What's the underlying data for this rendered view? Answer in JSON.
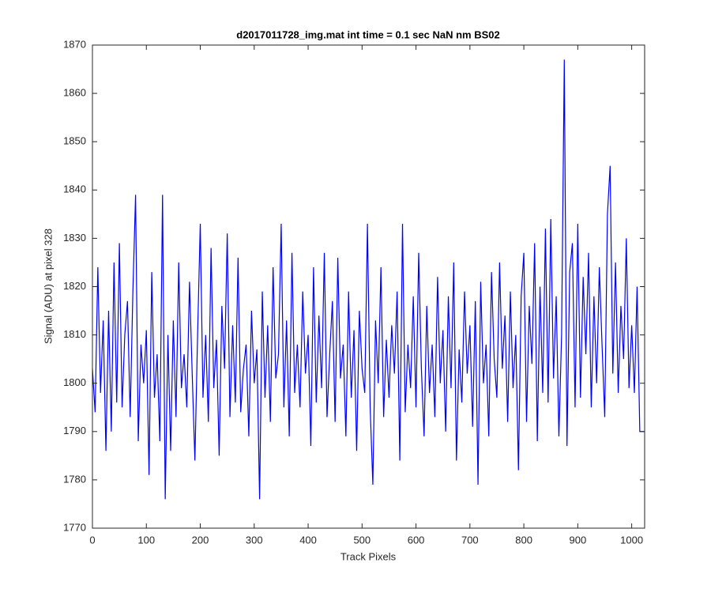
{
  "chart_data": {
    "type": "line",
    "title": "d2017011728_img.mat int time = 0.1 sec  NaN nm BS02",
    "x_label": "Track Pixels",
    "y_label": "Signal (ADU) at pixel 328",
    "xlim": [
      0,
      1024
    ],
    "ylim": [
      1770,
      1870
    ],
    "xticks": [
      0,
      100,
      200,
      300,
      400,
      500,
      600,
      700,
      800,
      900,
      1000
    ],
    "yticks": [
      1770,
      1780,
      1790,
      1800,
      1810,
      1820,
      1830,
      1840,
      1850,
      1860,
      1870
    ],
    "series": [
      {
        "color": "#0000ff",
        "x": [
          0,
          5,
          10,
          15,
          20,
          25,
          30,
          35,
          40,
          45,
          50,
          55,
          60,
          65,
          70,
          75,
          80,
          85,
          90,
          95,
          100,
          105,
          110,
          115,
          120,
          125,
          130,
          135,
          140,
          145,
          150,
          155,
          160,
          165,
          170,
          175,
          180,
          185,
          190,
          195,
          200,
          205,
          210,
          215,
          220,
          225,
          230,
          235,
          240,
          245,
          250,
          255,
          260,
          265,
          270,
          275,
          280,
          285,
          290,
          295,
          300,
          305,
          310,
          315,
          320,
          325,
          330,
          335,
          340,
          345,
          350,
          355,
          360,
          365,
          370,
          375,
          380,
          385,
          390,
          395,
          400,
          405,
          410,
          415,
          420,
          425,
          430,
          435,
          440,
          445,
          450,
          455,
          460,
          465,
          470,
          475,
          480,
          485,
          490,
          495,
          500,
          505,
          510,
          515,
          520,
          525,
          530,
          535,
          540,
          545,
          550,
          555,
          560,
          565,
          570,
          575,
          580,
          585,
          590,
          595,
          600,
          605,
          610,
          615,
          620,
          625,
          630,
          635,
          640,
          645,
          650,
          655,
          660,
          665,
          670,
          675,
          680,
          685,
          690,
          695,
          700,
          705,
          710,
          715,
          720,
          725,
          730,
          735,
          740,
          745,
          750,
          755,
          760,
          765,
          770,
          775,
          780,
          785,
          790,
          795,
          800,
          805,
          810,
          815,
          820,
          825,
          830,
          835,
          840,
          845,
          850,
          855,
          860,
          865,
          870,
          875,
          880,
          885,
          890,
          895,
          900,
          905,
          910,
          915,
          920,
          925,
          930,
          935,
          940,
          945,
          950,
          955,
          960,
          965,
          970,
          975,
          980,
          985,
          990,
          995,
          1000,
          1005,
          1010,
          1015,
          1020,
          1023
        ],
        "values": [
          1803,
          1794,
          1824,
          1798,
          1813,
          1786,
          1815,
          1790,
          1825,
          1796,
          1829,
          1795,
          1810,
          1817,
          1793,
          1819,
          1839,
          1788,
          1808,
          1800,
          1811,
          1781,
          1823,
          1797,
          1806,
          1788,
          1839,
          1776,
          1810,
          1786,
          1813,
          1793,
          1825,
          1799,
          1806,
          1795,
          1821,
          1802,
          1784,
          1810,
          1833,
          1797,
          1810,
          1792,
          1828,
          1799,
          1809,
          1785,
          1816,
          1803,
          1831,
          1793,
          1812,
          1796,
          1826,
          1794,
          1803,
          1808,
          1789,
          1815,
          1800,
          1807,
          1776,
          1819,
          1797,
          1812,
          1792,
          1824,
          1801,
          1806,
          1833,
          1795,
          1813,
          1789,
          1827,
          1798,
          1808,
          1795,
          1819,
          1802,
          1810,
          1787,
          1824,
          1796,
          1814,
          1799,
          1827,
          1793,
          1806,
          1817,
          1792,
          1826,
          1801,
          1808,
          1789,
          1819,
          1797,
          1811,
          1786,
          1815,
          1803,
          1798,
          1833,
          1795,
          1779,
          1813,
          1800,
          1824,
          1793,
          1809,
          1797,
          1812,
          1802,
          1819,
          1784,
          1833,
          1794,
          1808,
          1799,
          1818,
          1795,
          1827,
          1803,
          1789,
          1816,
          1798,
          1808,
          1793,
          1822,
          1800,
          1811,
          1790,
          1818,
          1799,
          1825,
          1784,
          1807,
          1796,
          1819,
          1802,
          1812,
          1791,
          1817,
          1779,
          1821,
          1800,
          1808,
          1789,
          1823,
          1805,
          1797,
          1825,
          1803,
          1814,
          1792,
          1819,
          1799,
          1810,
          1782,
          1818,
          1827,
          1792,
          1816,
          1804,
          1829,
          1788,
          1820,
          1798,
          1832,
          1796,
          1834,
          1801,
          1818,
          1789,
          1810,
          1867,
          1787,
          1823,
          1829,
          1795,
          1833,
          1797,
          1822,
          1806,
          1827,
          1795,
          1818,
          1800,
          1824,
          1808,
          1793,
          1835,
          1845,
          1802,
          1825,
          1798,
          1816,
          1805,
          1830,
          1799,
          1812,
          1798,
          1820,
          1790,
          1790,
          1790
        ]
      }
    ]
  }
}
